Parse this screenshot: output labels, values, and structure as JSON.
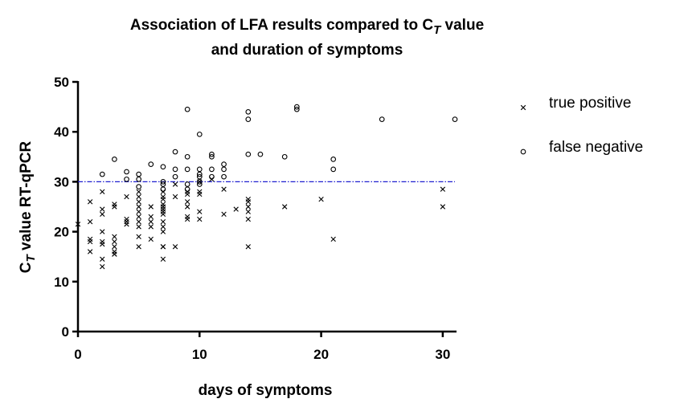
{
  "chart_data": {
    "type": "scatter",
    "title": [
      [
        "Association of LFA results compared to C",
        "T",
        " value"
      ],
      [
        "and duration of symptoms"
      ]
    ],
    "x_label": "days of symptoms",
    "y_label": [
      "C",
      "T",
      " value RT-qPCR"
    ],
    "xlim": [
      0,
      31
    ],
    "xticks": [
      0,
      10,
      20,
      30
    ],
    "ylim": [
      0,
      50
    ],
    "yticks": [
      0,
      10,
      20,
      30,
      40,
      50
    ],
    "reference_line": {
      "value": 30,
      "color": "#2020d0"
    },
    "legend": "right",
    "grid": false,
    "series": [
      {
        "name": "true positive",
        "marker": "x",
        "color": "#000000",
        "x": [
          0,
          1,
          1,
          1,
          1,
          1,
          2,
          2,
          2,
          2,
          2,
          2,
          2,
          2,
          3,
          3,
          3,
          3,
          3,
          3,
          3,
          3,
          4,
          4,
          4,
          4,
          5,
          5,
          5,
          5,
          5,
          5,
          5,
          5,
          5,
          5,
          6,
          6,
          6,
          6,
          6,
          7,
          7,
          7,
          7,
          7,
          7,
          7,
          7,
          7,
          7,
          7,
          7,
          7,
          7,
          8,
          8,
          8,
          9,
          9,
          9,
          9,
          9,
          9,
          10,
          10,
          10,
          10,
          10,
          11,
          12,
          12,
          13,
          14,
          14,
          14,
          14,
          14,
          14,
          17,
          20,
          21,
          30,
          30
        ],
        "values": [
          21.5,
          26,
          22,
          18.5,
          18,
          16,
          28,
          24.5,
          23.5,
          20,
          18,
          17.5,
          14.5,
          13,
          25.5,
          25,
          19,
          18,
          17,
          16,
          15.5,
          15.5,
          27,
          22.5,
          22,
          21.5,
          28,
          27,
          26,
          25,
          24,
          23,
          22,
          21,
          19,
          17,
          25,
          23,
          22,
          21,
          18.5,
          28,
          27,
          26.5,
          25.5,
          25,
          24.5,
          24,
          23.5,
          22,
          21,
          20,
          17,
          17,
          14.5,
          29.5,
          27,
          17,
          28,
          27.5,
          26,
          25,
          23,
          22.5,
          30,
          28,
          27.5,
          24,
          22.5,
          30.5,
          28.5,
          23.5,
          24.5,
          26.5,
          26,
          25,
          24,
          22.5,
          17,
          25,
          26.5,
          18.5,
          28.5,
          25
        ]
      },
      {
        "name": "false negative",
        "marker": "o",
        "color": "#000000",
        "x": [
          2,
          3,
          4,
          4,
          5,
          5,
          5,
          6,
          7,
          7,
          7,
          7,
          8,
          8,
          8,
          9,
          9,
          9,
          9,
          9,
          10,
          10,
          10,
          10,
          10,
          10,
          11,
          11,
          11,
          11,
          12,
          12,
          12,
          14,
          14,
          14,
          15,
          17,
          18,
          18,
          21,
          21,
          25,
          31
        ],
        "values": [
          31.5,
          34.5,
          32,
          30.5,
          31.5,
          30.5,
          29,
          33.5,
          33,
          30,
          29.5,
          28.5,
          36,
          32.5,
          31,
          44.5,
          35,
          32.5,
          29.5,
          28.5,
          39.5,
          32.5,
          31.5,
          31,
          30,
          29.5,
          35.5,
          35,
          32.5,
          31,
          33.5,
          32.5,
          31,
          44,
          42.5,
          35.5,
          35.5,
          35,
          45,
          44.5,
          34.5,
          32.5,
          42.5,
          42.5
        ]
      }
    ]
  }
}
